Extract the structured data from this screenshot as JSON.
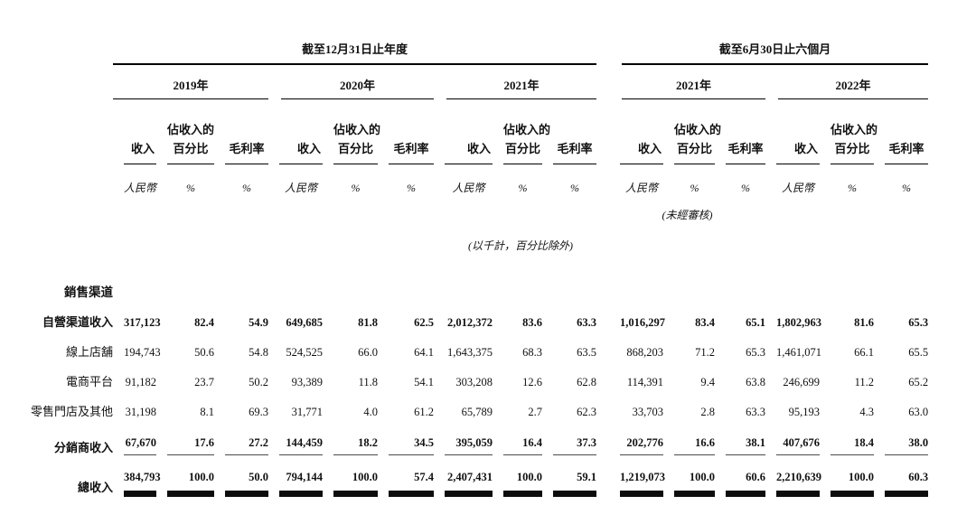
{
  "page": {
    "background": "#ffffff",
    "text_color": "#111111",
    "rule_color": "#000000",
    "subtotal_rule_color": "#4a4a4a"
  },
  "table": {
    "period_groups": [
      {
        "label": "截至12月31日止年度",
        "years": [
          "2019年",
          "2020年",
          "2021年"
        ]
      },
      {
        "label": "截至6月30日止六個月",
        "years": [
          "2021年",
          "2022年"
        ]
      }
    ],
    "column_headers": {
      "revenue": "收入",
      "pct_line1": "佔收入的",
      "pct_line2": "百分比",
      "gross_margin": "毛利率"
    },
    "units": {
      "currency": "人民幣",
      "percent": "%"
    },
    "notes": {
      "unaudited": "(未經審核)",
      "scale": "(以千計，百分比除外)"
    },
    "section_label": "銷售渠道",
    "rows": [
      {
        "label": "自營渠道收入",
        "indent": false,
        "bold": true,
        "style": "plain",
        "values": [
          "317,123",
          "82.4",
          "54.9",
          "649,685",
          "81.8",
          "62.5",
          "2,012,372",
          "83.6",
          "63.3",
          "1,016,297",
          "83.4",
          "65.1",
          "1,802,963",
          "81.6",
          "65.3"
        ]
      },
      {
        "label": "線上店舖",
        "indent": true,
        "bold": false,
        "style": "plain",
        "values": [
          "194,743",
          "50.6",
          "54.8",
          "524,525",
          "66.0",
          "64.1",
          "1,643,375",
          "68.3",
          "63.5",
          "868,203",
          "71.2",
          "65.3",
          "1,461,071",
          "66.1",
          "65.5"
        ]
      },
      {
        "label": "電商平台",
        "indent": true,
        "bold": false,
        "style": "plain",
        "values": [
          "91,182",
          "23.7",
          "50.2",
          "93,389",
          "11.8",
          "54.1",
          "303,208",
          "12.6",
          "62.8",
          "114,391",
          "9.4",
          "63.8",
          "246,699",
          "11.2",
          "65.2"
        ]
      },
      {
        "label": "零售門店及其他",
        "indent": true,
        "bold": false,
        "style": "plain",
        "values": [
          "31,198",
          "8.1",
          "69.3",
          "31,771",
          "4.0",
          "61.2",
          "65,789",
          "2.7",
          "62.3",
          "33,703",
          "2.8",
          "63.3",
          "95,193",
          "4.3",
          "63.0"
        ]
      },
      {
        "label": "分銷商收入",
        "indent": false,
        "bold": true,
        "style": "subtotal",
        "values": [
          "67,670",
          "17.6",
          "27.2",
          "144,459",
          "18.2",
          "34.5",
          "395,059",
          "16.4",
          "37.3",
          "202,776",
          "16.6",
          "38.1",
          "407,676",
          "18.4",
          "38.0"
        ]
      },
      {
        "label": "總收入",
        "indent": false,
        "bold": true,
        "style": "total",
        "values": [
          "384,793",
          "100.0",
          "50.0",
          "794,144",
          "100.0",
          "57.4",
          "2,407,431",
          "100.0",
          "59.1",
          "1,219,073",
          "100.0",
          "60.6",
          "2,210,639",
          "100.0",
          "60.3"
        ]
      }
    ]
  }
}
